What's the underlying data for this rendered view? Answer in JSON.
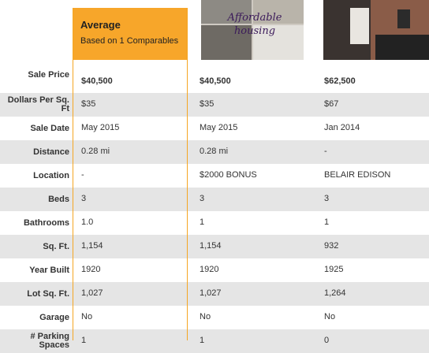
{
  "average": {
    "title": "Average",
    "subtitle": "Based on 1 Comparables"
  },
  "photo_caption": "Affordable housing",
  "row_labels": [
    "Sale Price",
    "Dollars Per Sq. Ft",
    "Sale Date",
    "Distance",
    "Location",
    "Beds",
    "Bathrooms",
    "Sq. Ft.",
    "Year Built",
    "Lot Sq. Ft.",
    "Garage",
    "# Parking Spaces"
  ],
  "columns": [
    [
      "$40,500",
      "$35",
      "May 2015",
      "0.28 mi",
      "-",
      "3",
      "1.0",
      "1,154",
      "1920",
      "1,027",
      "No",
      "1"
    ],
    [
      "$40,500",
      "$35",
      "May 2015",
      "0.28 mi",
      "$2000 BONUS",
      "3",
      "1",
      "1,154",
      "1920",
      "1,027",
      "No",
      "1"
    ],
    [
      "$62,500",
      "$67",
      "Jan 2014",
      "-",
      "BELAIR EDISON",
      "3",
      "1",
      "932",
      "1925",
      "1,264",
      "No",
      "0"
    ]
  ]
}
